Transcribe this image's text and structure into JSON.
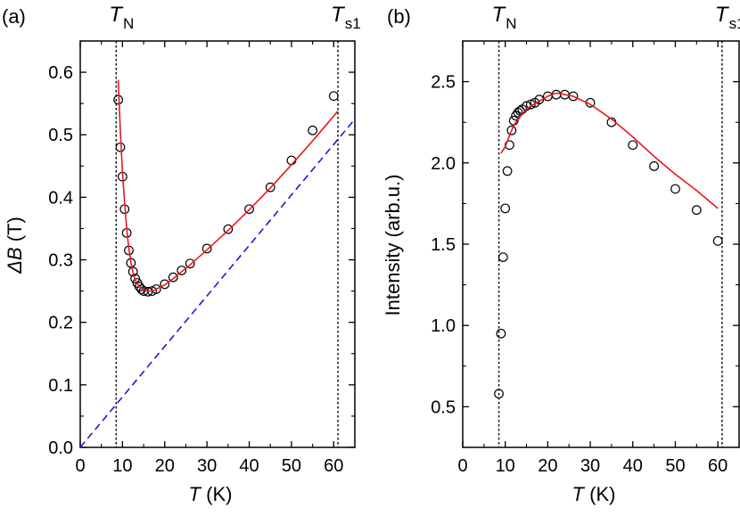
{
  "chart_data": [
    {
      "type": "scatter",
      "panel_label": "(a)",
      "xlabel": {
        "symbol": "T",
        "unit": "(K)"
      },
      "ylabel": {
        "symbol": "ΔB",
        "unit": "(T)"
      },
      "xlim": [
        0,
        65
      ],
      "ylim": [
        0.0,
        0.65
      ],
      "xticks": [
        0,
        10,
        20,
        30,
        40,
        50,
        60
      ],
      "yticks": [
        0.0,
        0.1,
        0.2,
        0.3,
        0.4,
        0.5,
        0.6
      ],
      "tick_labels_x": [
        "0",
        "10",
        "20",
        "30",
        "40",
        "50",
        "60"
      ],
      "tick_labels_y": [
        "0.0",
        "0.1",
        "0.2",
        "0.3",
        "0.4",
        "0.5",
        "0.6"
      ],
      "markers": [
        {
          "base": "T",
          "sub": "N",
          "x": 8.5
        },
        {
          "base": "T",
          "sub": "s1",
          "x": 61
        }
      ],
      "series": [
        {
          "name": "data",
          "style": "open-circle",
          "color": "#000000",
          "points": [
            [
              9.0,
              0.556
            ],
            [
              9.5,
              0.48
            ],
            [
              10.0,
              0.433
            ],
            [
              10.5,
              0.381
            ],
            [
              11.0,
              0.343
            ],
            [
              11.5,
              0.315
            ],
            [
              12.0,
              0.295
            ],
            [
              12.5,
              0.281
            ],
            [
              13.0,
              0.27
            ],
            [
              13.5,
              0.263
            ],
            [
              14.0,
              0.257
            ],
            [
              14.5,
              0.253
            ],
            [
              15.0,
              0.25
            ],
            [
              16.0,
              0.249
            ],
            [
              17.0,
              0.25
            ],
            [
              18.0,
              0.253
            ],
            [
              20.0,
              0.261
            ],
            [
              22.0,
              0.272
            ],
            [
              24.0,
              0.283
            ],
            [
              26.0,
              0.294
            ],
            [
              30.0,
              0.318
            ],
            [
              35.0,
              0.349
            ],
            [
              40.0,
              0.381
            ],
            [
              45.0,
              0.416
            ],
            [
              50.0,
              0.459
            ],
            [
              55.0,
              0.507
            ],
            [
              60.0,
              0.562
            ]
          ]
        },
        {
          "name": "fit",
          "style": "line",
          "color": "#e8191f",
          "points": [
            [
              9.0,
              0.588
            ],
            [
              9.5,
              0.505
            ],
            [
              10.0,
              0.44
            ],
            [
              10.5,
              0.39
            ],
            [
              11.0,
              0.35
            ],
            [
              11.5,
              0.318
            ],
            [
              12.0,
              0.295
            ],
            [
              12.5,
              0.28
            ],
            [
              13.0,
              0.268
            ],
            [
              14.0,
              0.257
            ],
            [
              15.0,
              0.252
            ],
            [
              16.0,
              0.25
            ],
            [
              17.0,
              0.25
            ],
            [
              18.0,
              0.253
            ],
            [
              20.0,
              0.26
            ],
            [
              22.0,
              0.27
            ],
            [
              24.0,
              0.281
            ],
            [
              26.0,
              0.292
            ],
            [
              30.0,
              0.316
            ],
            [
              35.0,
              0.347
            ],
            [
              40.0,
              0.38
            ],
            [
              45.0,
              0.415
            ],
            [
              50.0,
              0.452
            ],
            [
              55.0,
              0.49
            ],
            [
              60.0,
              0.53
            ],
            [
              61.0,
              0.538
            ]
          ]
        },
        {
          "name": "linear",
          "style": "dashed",
          "color": "#1a1ad6",
          "points": [
            [
              0,
              0.0
            ],
            [
              65,
              0.525
            ]
          ]
        }
      ]
    },
    {
      "type": "scatter",
      "panel_label": "(b)",
      "xlabel": {
        "symbol": "T",
        "unit": "(K)"
      },
      "ylabel": {
        "symbol": "",
        "unit": "Intensity (arb.u.)"
      },
      "xlim": [
        0,
        65
      ],
      "ylim": [
        0.25,
        2.75
      ],
      "xticks": [
        0,
        10,
        20,
        30,
        40,
        50,
        60
      ],
      "yticks": [
        0.5,
        1.0,
        1.5,
        2.0,
        2.5
      ],
      "tick_labels_x": [
        "0",
        "10",
        "20",
        "30",
        "40",
        "50",
        "60"
      ],
      "tick_labels_y": [
        "0.5",
        "1.0",
        "1.5",
        "2.0",
        "2.5"
      ],
      "markers": [
        {
          "base": "T",
          "sub": "N",
          "x": 8.5
        },
        {
          "base": "T",
          "sub": "s1",
          "x": 61
        }
      ],
      "series": [
        {
          "name": "data",
          "style": "open-circle",
          "color": "#000000",
          "points": [
            [
              8.5,
              0.58
            ],
            [
              9.0,
              0.95
            ],
            [
              9.5,
              1.42
            ],
            [
              10.0,
              1.72
            ],
            [
              10.5,
              1.95
            ],
            [
              11.0,
              2.11
            ],
            [
              11.5,
              2.2
            ],
            [
              12.0,
              2.26
            ],
            [
              12.5,
              2.29
            ],
            [
              13.0,
              2.31
            ],
            [
              13.5,
              2.32
            ],
            [
              14.0,
              2.33
            ],
            [
              15.0,
              2.35
            ],
            [
              16.0,
              2.36
            ],
            [
              17.0,
              2.37
            ],
            [
              18.0,
              2.39
            ],
            [
              20.0,
              2.41
            ],
            [
              22.0,
              2.42
            ],
            [
              24.0,
              2.42
            ],
            [
              26.0,
              2.41
            ],
            [
              30.0,
              2.37
            ],
            [
              35.0,
              2.25
            ],
            [
              40.0,
              2.11
            ],
            [
              45.0,
              1.98
            ],
            [
              50.0,
              1.84
            ],
            [
              55.0,
              1.71
            ],
            [
              60.0,
              1.52
            ]
          ]
        },
        {
          "name": "fit",
          "style": "line",
          "color": "#e8191f",
          "points": [
            [
              9.0,
              2.06
            ],
            [
              10.0,
              2.1
            ],
            [
              11.0,
              2.17
            ],
            [
              12.0,
              2.23
            ],
            [
              13.0,
              2.27
            ],
            [
              14.0,
              2.3
            ],
            [
              15.0,
              2.33
            ],
            [
              16.0,
              2.35
            ],
            [
              18.0,
              2.38
            ],
            [
              20.0,
              2.41
            ],
            [
              22.0,
              2.43
            ],
            [
              24.0,
              2.42
            ],
            [
              26.0,
              2.41
            ],
            [
              30.0,
              2.36
            ],
            [
              35.0,
              2.27
            ],
            [
              40.0,
              2.16
            ],
            [
              45.0,
              2.04
            ],
            [
              50.0,
              1.93
            ],
            [
              55.0,
              1.83
            ],
            [
              60.0,
              1.72
            ]
          ]
        }
      ]
    }
  ]
}
